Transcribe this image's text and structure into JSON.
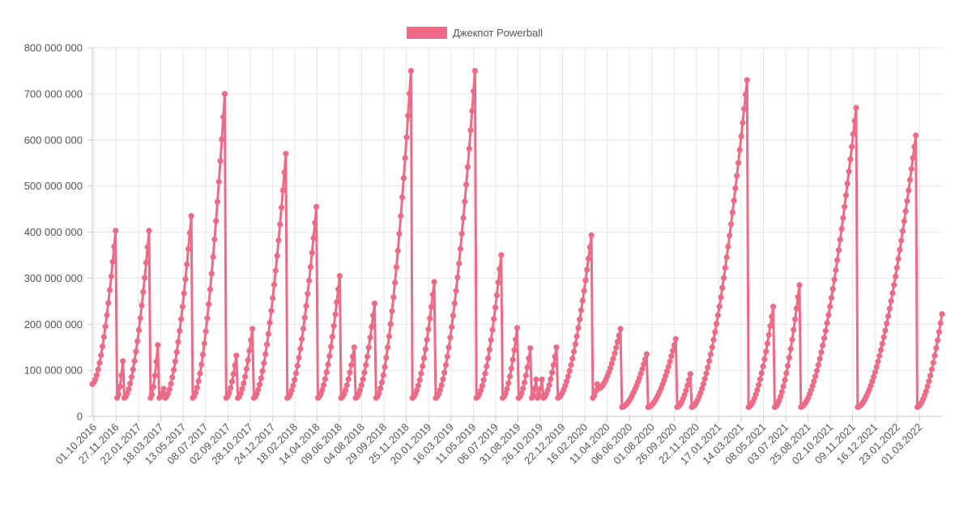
{
  "chart_data": {
    "type": "line",
    "title": "",
    "xlabel": "",
    "ylabel": "",
    "ylim": [
      0,
      800000000
    ],
    "grid": true,
    "legend_position": "top-center",
    "color": "#ec6b87",
    "y_ticks": [
      "0",
      "100 000 000",
      "200 000 000",
      "300 000 000",
      "400 000 000",
      "500 000 000",
      "600 000 000",
      "700 000 000",
      "800 000 000"
    ],
    "y_tick_values": [
      0,
      100000000,
      200000000,
      300000000,
      400000000,
      500000000,
      600000000,
      700000000,
      800000000
    ],
    "x_tick_labels": [
      "01.10.2016",
      "27.11.2016",
      "22.01.2017",
      "18.03.2017",
      "13.05.2017",
      "08.07.2017",
      "02.09.2017",
      "28.10.2017",
      "24.12.2017",
      "18.02.2018",
      "14.04.2018",
      "09.06.2018",
      "04.08.2018",
      "29.09.2018",
      "25.11.2018",
      "20.01.2019",
      "16.03.2019",
      "11.05.2019",
      "06.07.2019",
      "31.08.2019",
      "26.10.2019",
      "22.12.2019",
      "16.02.2020",
      "11.04.2020",
      "06.06.2020",
      "01.08.2020",
      "26.09.2020",
      "22.11.2020",
      "17.01.2021",
      "14.03.2021",
      "08.05.2021",
      "03.07.2021",
      "25.08.2021",
      "02.10.2021",
      "09.11.2021",
      "16.12.2021",
      "23.01.2022",
      "01.03.2022"
    ],
    "series": [
      {
        "name": "Джекпот Powerball",
        "cycles": [
          {
            "start": 0,
            "len": 17,
            "from": 70000000,
            "to": 403000000
          },
          {
            "start": 17,
            "len": 5,
            "from": 40000000,
            "to": 120000000
          },
          {
            "start": 22,
            "len": 18,
            "from": 40000000,
            "to": 403000000
          },
          {
            "start": 40,
            "len": 6,
            "from": 40000000,
            "to": 155000000
          },
          {
            "start": 46,
            "len": 4,
            "from": 40000000,
            "to": 60000000
          },
          {
            "start": 50,
            "len": 19,
            "from": 40000000,
            "to": 435000000
          },
          {
            "start": 69,
            "len": 23,
            "from": 40000000,
            "to": 700000000
          },
          {
            "start": 92,
            "len": 8,
            "from": 40000000,
            "to": 132000000
          },
          {
            "start": 100,
            "len": 11,
            "from": 40000000,
            "to": 190000000
          },
          {
            "start": 111,
            "len": 23,
            "from": 40000000,
            "to": 570000000
          },
          {
            "start": 134,
            "len": 21,
            "from": 40000000,
            "to": 455000000
          },
          {
            "start": 155,
            "len": 16,
            "from": 40000000,
            "to": 305000000
          },
          {
            "start": 171,
            "len": 10,
            "from": 40000000,
            "to": 150000000
          },
          {
            "start": 181,
            "len": 14,
            "from": 40000000,
            "to": 245000000
          },
          {
            "start": 195,
            "len": 25,
            "from": 40000000,
            "to": 750000000
          },
          {
            "start": 220,
            "len": 16,
            "from": 40000000,
            "to": 292000000
          },
          {
            "start": 236,
            "len": 28,
            "from": 40000000,
            "to": 750000000
          },
          {
            "start": 264,
            "len": 18,
            "from": 40000000,
            "to": 350000000
          },
          {
            "start": 282,
            "len": 11,
            "from": 40000000,
            "to": 192000000
          },
          {
            "start": 293,
            "len": 9,
            "from": 40000000,
            "to": 148000000
          },
          {
            "start": 302,
            "len": 4,
            "from": 40000000,
            "to": 80000000
          },
          {
            "start": 306,
            "len": 4,
            "from": 40000000,
            "to": 80000000
          },
          {
            "start": 310,
            "len": 10,
            "from": 40000000,
            "to": 150000000
          },
          {
            "start": 320,
            "len": 24,
            "from": 40000000,
            "to": 393000000
          },
          {
            "start": 344,
            "len": 4,
            "from": 40000000,
            "to": 70000000
          },
          {
            "start": 348,
            "len": 16,
            "from": 60000000,
            "to": 190000000
          },
          {
            "start": 364,
            "len": 18,
            "from": 20000000,
            "to": 135000000
          },
          {
            "start": 382,
            "len": 20,
            "from": 20000000,
            "to": 168000000
          },
          {
            "start": 402,
            "len": 10,
            "from": 20000000,
            "to": 92000000
          },
          {
            "start": 412,
            "len": 39,
            "from": 20000000,
            "to": 730000000
          },
          {
            "start": 451,
            "len": 18,
            "from": 20000000,
            "to": 238000000
          },
          {
            "start": 469,
            "len": 18,
            "from": 20000000,
            "to": 285000000
          },
          {
            "start": 487,
            "len": 39,
            "from": 20000000,
            "to": 670000000
          },
          {
            "start": 526,
            "len": 41,
            "from": 20000000,
            "to": 610000000
          },
          {
            "start": 567,
            "len": 18,
            "from": 20000000,
            "to": 222000000
          }
        ]
      }
    ]
  }
}
